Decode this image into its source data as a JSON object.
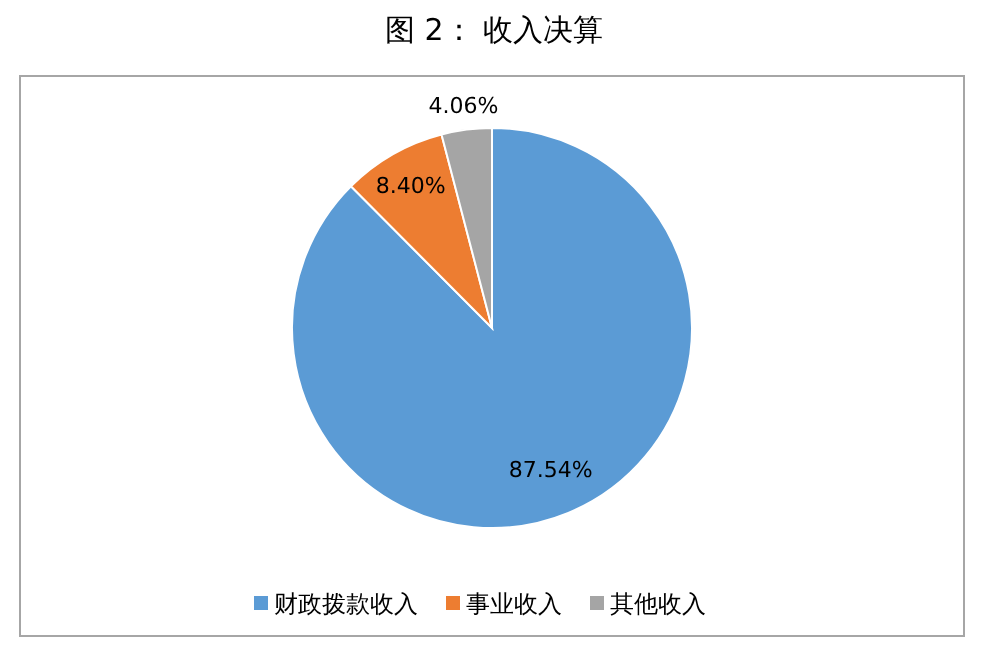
{
  "chart_data": {
    "type": "pie",
    "title": "图 2： 收入决算",
    "categories": [
      "财政拨款收入",
      "事业收入",
      "其他收入"
    ],
    "values": [
      87.54,
      8.4,
      4.06
    ],
    "colors": [
      "#5b9bd5",
      "#ed7d31",
      "#a5a5a5"
    ],
    "value_labels": [
      "87.54%",
      "8.40%",
      "4.06%"
    ],
    "legend": "bottom"
  }
}
